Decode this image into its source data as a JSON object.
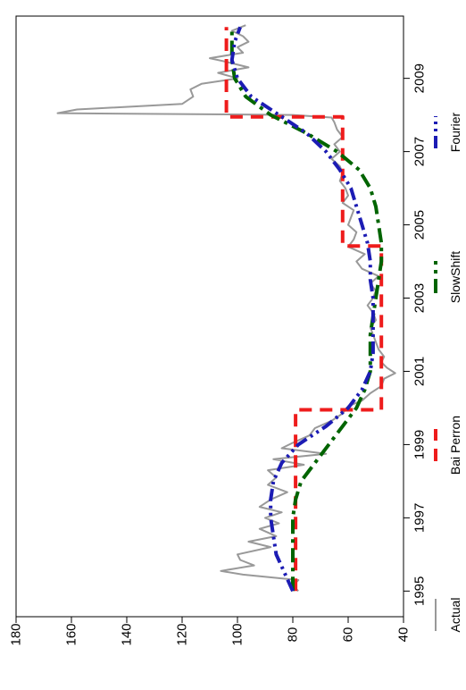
{
  "chart_data": {
    "type": "line",
    "orientation": "rotated-90",
    "title": "",
    "xlabel": "",
    "ylabel": "",
    "xlim": [
      1994.3,
      2010.7
    ],
    "ylim": [
      40,
      180
    ],
    "x_ticks": [
      1995,
      1997,
      1999,
      2001,
      2003,
      2005,
      2007,
      2009
    ],
    "y_ticks": [
      40,
      60,
      80,
      100,
      120,
      140,
      160,
      180
    ],
    "legend_position": "bottom",
    "series": [
      {
        "name": "Actual",
        "color": "#999999",
        "dash": "solid",
        "x": [
          1995.0,
          1995.15,
          1995.3,
          1995.45,
          1995.55,
          1995.7,
          1995.85,
          1996.0,
          1996.2,
          1996.35,
          1996.5,
          1996.7,
          1996.85,
          1997.0,
          1997.15,
          1997.3,
          1997.5,
          1997.7,
          1997.9,
          1998.1,
          1998.3,
          1998.45,
          1998.6,
          1998.75,
          1998.9,
          1999.05,
          1999.25,
          1999.45,
          1999.65,
          1999.85,
          2000.05,
          2000.2,
          2000.4,
          2000.6,
          2000.8,
          2000.95,
          2001.1,
          2001.25,
          2001.4,
          2001.6,
          2001.8,
          2002.0,
          2002.2,
          2002.4,
          2002.6,
          2002.8,
          2003.0,
          2003.2,
          2003.4,
          2003.6,
          2003.8,
          2004.0,
          2004.2,
          2004.4,
          2004.6,
          2004.8,
          2005.0,
          2005.2,
          2005.4,
          2005.6,
          2005.8,
          2006.0,
          2006.2,
          2006.4,
          2006.6,
          2006.8,
          2007.0,
          2007.2,
          2007.4,
          2007.6,
          2007.8,
          2007.93,
          2008.0,
          2008.05,
          2008.15,
          2008.3,
          2008.5,
          2008.7,
          2008.85,
          2009.0,
          2009.15,
          2009.3,
          2009.45,
          2009.55,
          2009.7,
          2009.85,
          2010.0,
          2010.15,
          2010.3,
          2010.45
        ],
        "y": [
          78,
          80,
          78,
          98,
          106,
          94,
          99,
          100,
          88,
          96,
          86,
          92,
          85,
          90,
          84,
          92,
          88,
          82,
          89,
          86,
          89,
          76,
          87,
          68,
          84,
          80,
          74,
          72,
          66,
          62,
          60,
          55,
          52,
          48,
          47,
          43,
          46,
          48,
          47,
          49,
          50,
          51,
          52,
          50,
          51,
          53,
          51,
          50,
          52,
          49,
          55,
          57,
          54,
          60,
          58,
          57,
          60,
          59,
          58,
          62,
          60,
          61,
          63,
          62,
          63,
          66,
          63,
          65,
          62,
          64,
          65,
          66,
          80,
          165,
          158,
          120,
          116,
          117,
          113,
          100,
          107,
          96,
          104,
          110,
          98,
          100,
          96,
          98,
          102,
          97
        ]
      },
      {
        "name": "Bai Perron",
        "color": "#ee1c1c",
        "dash": "long-dash",
        "x": [
          1995.0,
          1999.95,
          1999.95,
          2003.92,
          2003.92,
          2004.42,
          2004.42,
          2007.95,
          2007.95,
          2010.4
        ],
        "y": [
          79,
          79,
          48,
          48,
          48,
          48,
          62,
          62,
          104,
          104
        ]
      },
      {
        "name": "SlowShift",
        "color": "#006400",
        "dash": "dash-dot",
        "x": [
          1995.0,
          1995.5,
          1996.0,
          1996.5,
          1997.0,
          1997.5,
          1998.0,
          1998.5,
          1999.0,
          1999.5,
          2000.0,
          2000.5,
          2001.0,
          2001.5,
          2002.0,
          2002.5,
          2003.0,
          2003.5,
          2004.0,
          2004.5,
          2005.0,
          2005.5,
          2006.0,
          2006.5,
          2007.0,
          2007.5,
          2008.0,
          2008.5,
          2009.0,
          2009.5,
          2010.0,
          2010.4
        ],
        "y": [
          80,
          80,
          80,
          80,
          80,
          79,
          77,
          72,
          67,
          62,
          57,
          54,
          52,
          52,
          52,
          51,
          50,
          49,
          48,
          48,
          49,
          50,
          52,
          56,
          64,
          75,
          88,
          97,
          101,
          102,
          102,
          102
        ]
      },
      {
        "name": "Fourier",
        "color": "#1c1cb4",
        "dash": "dash-dot-dot",
        "x": [
          1995.0,
          1995.5,
          1996.0,
          1996.5,
          1997.0,
          1997.5,
          1998.0,
          1998.5,
          1999.0,
          1999.5,
          2000.0,
          2000.5,
          2001.0,
          2001.5,
          2002.0,
          2002.5,
          2003.0,
          2003.5,
          2004.0,
          2004.5,
          2005.0,
          2005.5,
          2006.0,
          2006.5,
          2007.0,
          2007.5,
          2008.0,
          2008.5,
          2009.0,
          2009.5,
          2010.0,
          2010.4
        ],
        "y": [
          80,
          83,
          86,
          87,
          88,
          88,
          87,
          84,
          78,
          68,
          60,
          55,
          52,
          51,
          51,
          51,
          51,
          52,
          52,
          53,
          55,
          57,
          59,
          63,
          68,
          75,
          85,
          95,
          100,
          102,
          101,
          99
        ]
      }
    ]
  }
}
